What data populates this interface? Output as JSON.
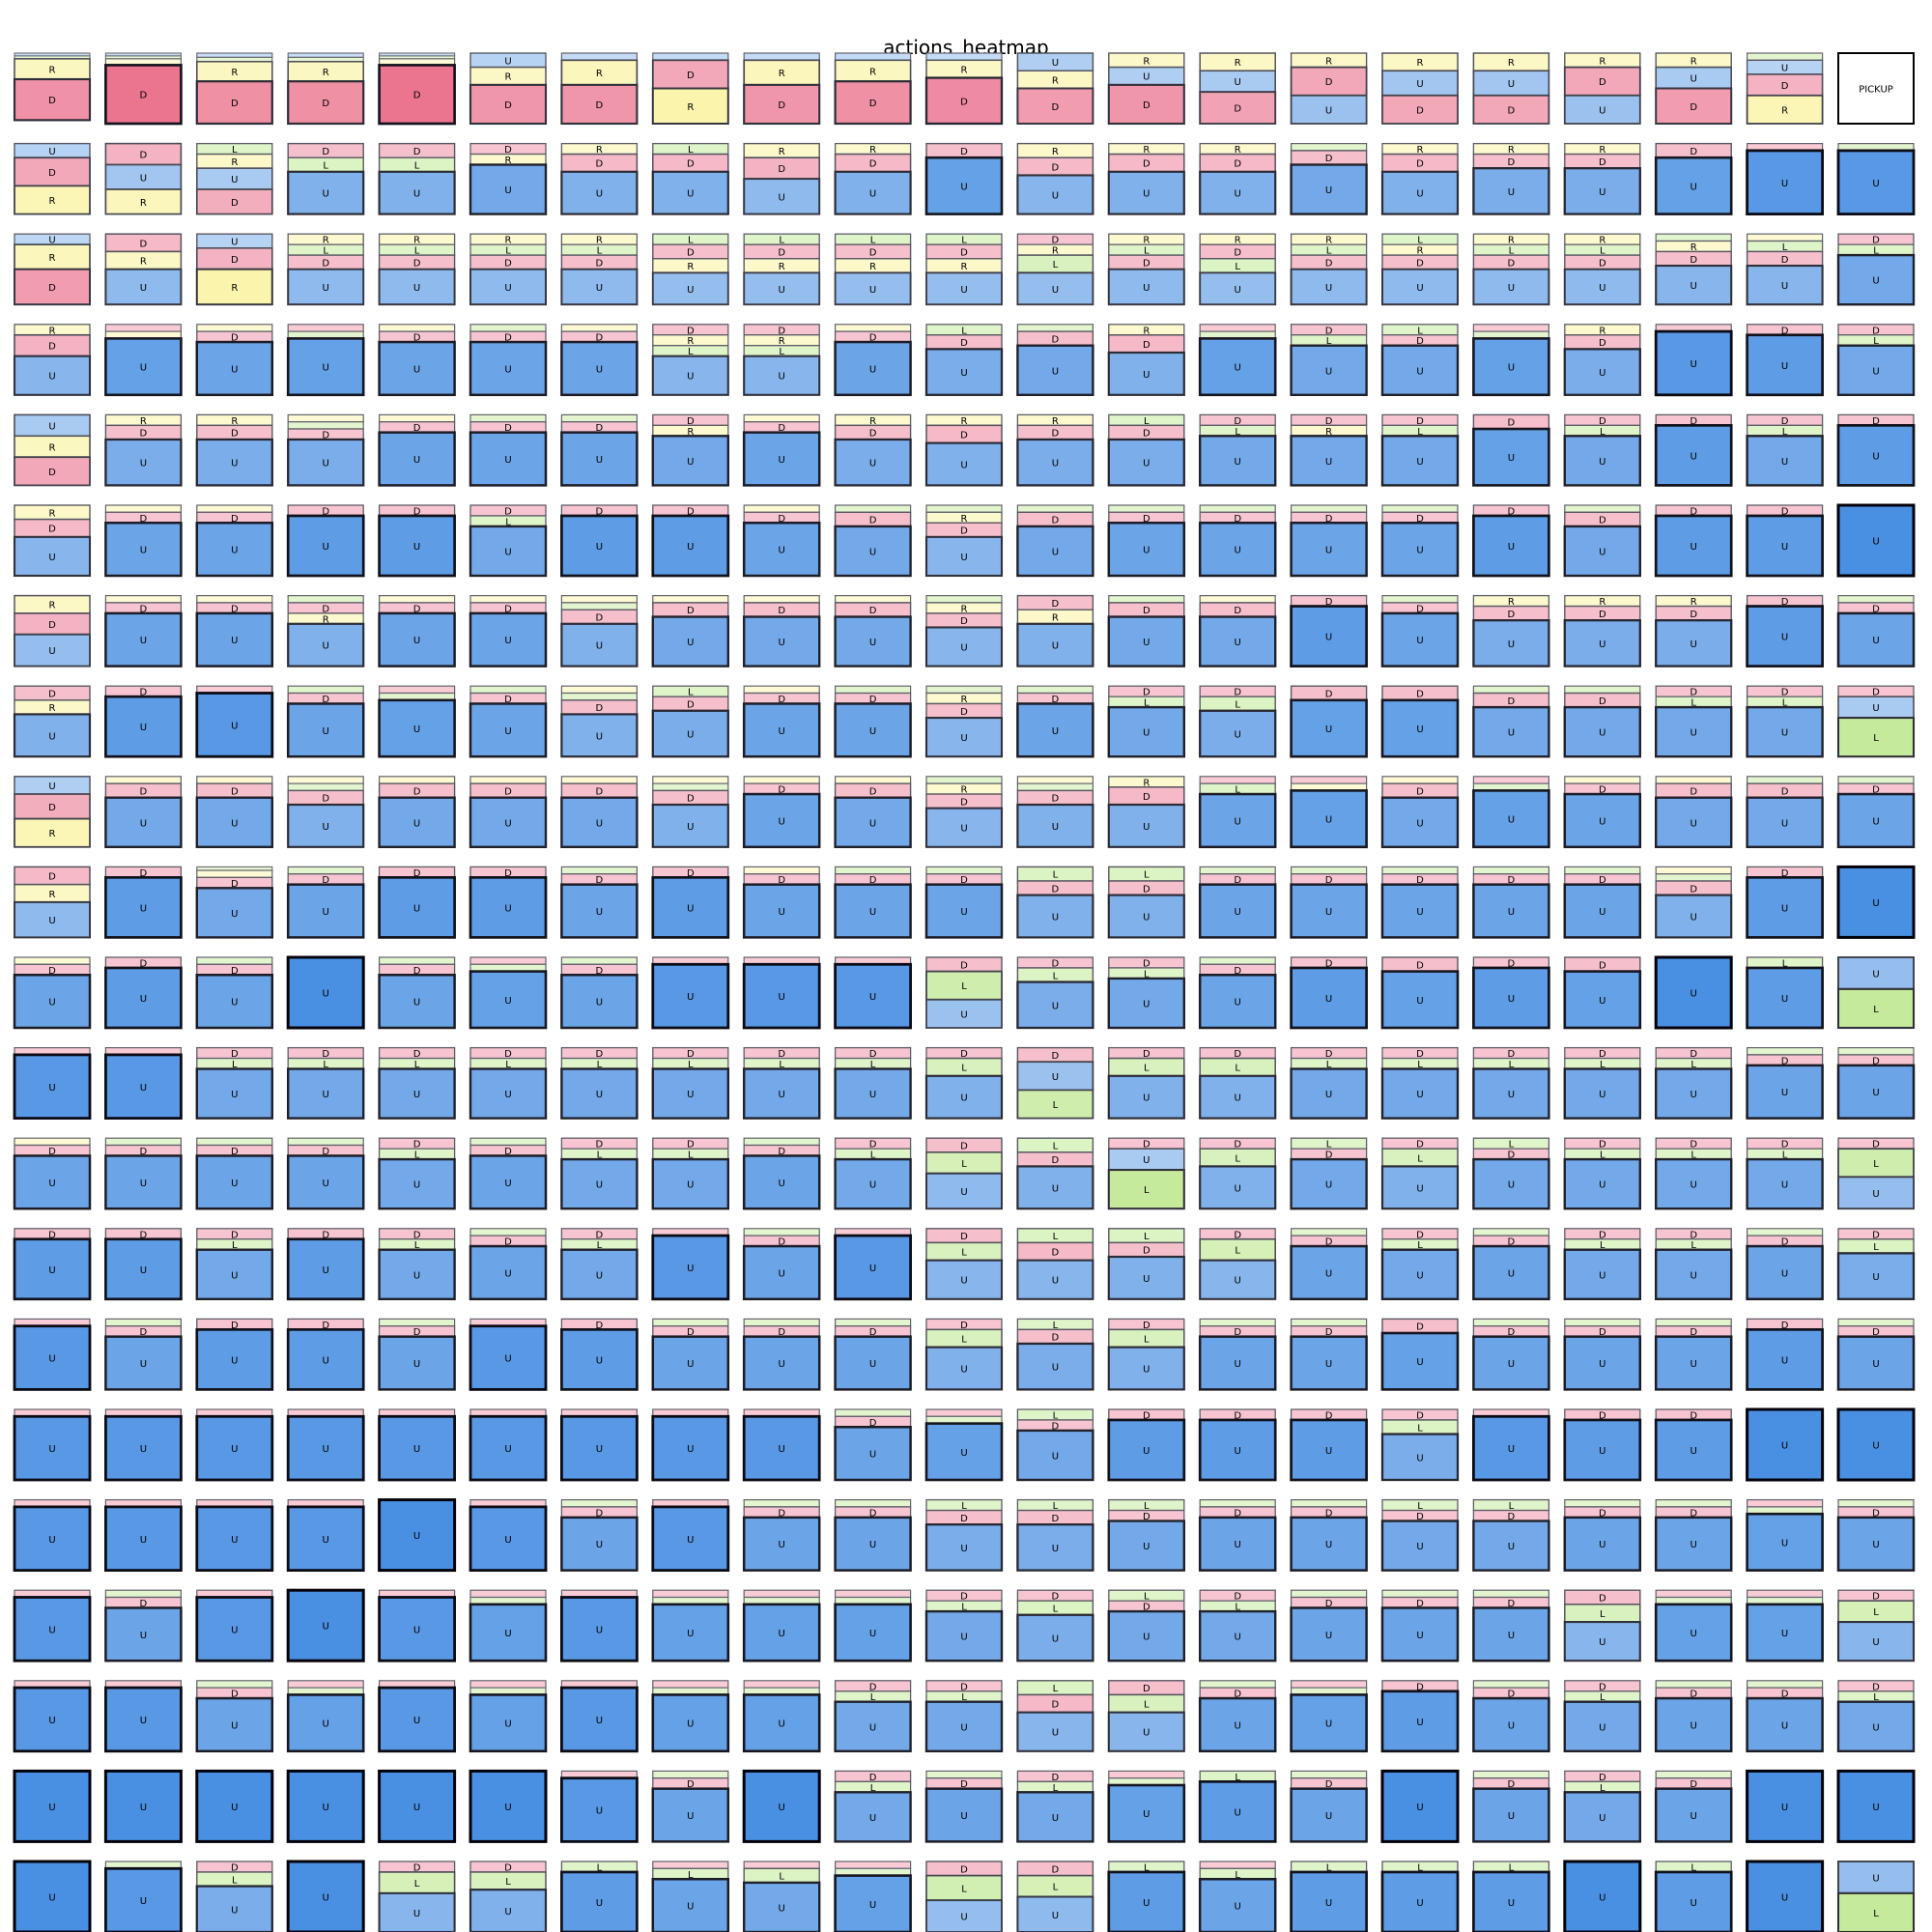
{
  "chart_data": {
    "type": "heatmap",
    "title": "actions_heatmap",
    "rows": 21,
    "cols": 21,
    "actions": [
      "U",
      "D",
      "L",
      "R"
    ],
    "action_colors": {
      "U": "#4a90e2",
      "D": "#e8607f",
      "L": "#a8e06a",
      "R": "#f7ee7a"
    },
    "special_cells": [
      {
        "row": 0,
        "col": 20,
        "label": "PICKUP"
      }
    ],
    "grid": [
      [
        "D:0.58,R:0.29,U:0.04,L:0.04",
        "D:0.83,R:0.09,U:0.04,L:0.04",
        "D:0.60,R:0.28,U:0.06,L:0.06",
        "D:0.60,R:0.28,U:0.06,L:0.06",
        "D:0.83,R:0.09,U:0.04,L:0.04",
        "D:0.55,R:0.25,U:0.20",
        "D:0.55,R:0.35,U:0.10",
        "R:0.50,D:0.40,U:0.10",
        "D:0.55,R:0.35,U:0.10",
        "D:0.60,R:0.30,U:0.10",
        "D:0.65,R:0.25,U:0.10",
        "D:0.50,U:0.25,R:0.25",
        "D:0.55,U:0.25,R:0.20",
        "D:0.45,U:0.30,R:0.25",
        "D:0.40,U:0.40,R:0.20",
        "D:0.40,U:0.35,R:0.25",
        "D:0.40,U:0.35,R:0.25",
        "D:0.40,U:0.40,R:0.20",
        "D:0.50,U:0.30,R:0.20",
        "R:0.40,D:0.30,U:0.20,L:0.10",
        "PICKUP"
      ],
      [
        "D:0.40,R:0.40,U:0.20",
        "U:0.35,R:0.35,D:0.30",
        "D:0.35,U:0.30,R:0.20,L:0.15",
        "U:0.60,D:0.20,L:0.20",
        "U:0.60,D:0.20,L:0.20",
        "U:0.70,D:0.15,R:0.15",
        "U:0.60,D:0.25,R:0.15",
        "U:0.60,D:0.25,L:0.15",
        "U:0.50,D:0.30,R:0.20",
        "U:0.60,D:0.25,R:0.15",
        "U:0.80,D:0.20",
        "U:0.55,D:0.25,R:0.20",
        "U:0.60,D:0.25,R:0.15",
        "U:0.60,D:0.25,R:0.15",
        "U:0.70,D:0.20,L:0.10",
        "U:0.60,D:0.25,R:0.15",
        "U:0.65,D:0.20,R:0.15",
        "U:0.65,D:0.20,R:0.15",
        "U:0.80,D:0.20",
        "U:0.90,D:0.10",
        "U:0.90,L:0.10"
      ],
      [
        "D:0.50,R:0.35,U:0.15",
        "U:0.50,D:0.25,R:0.25",
        "R:0.50,D:0.30,U:0.20",
        "U:0.50,D:0.20,R:0.15,L:0.15",
        "U:0.50,D:0.20,R:0.15,L:0.15",
        "U:0.50,D:0.20,R:0.15,L:0.15",
        "U:0.50,D:0.20,R:0.15,L:0.15",
        "U:0.45,D:0.20,R:0.20,L:0.15",
        "U:0.45,D:0.20,R:0.20,L:0.15",
        "U:0.45,D:0.20,R:0.20,L:0.15",
        "U:0.45,D:0.20,R:0.20,L:0.15",
        "U:0.45,L:0.25,D:0.15,R:0.15",
        "U:0.50,D:0.20,R:0.15,L:0.15",
        "U:0.45,D:0.20,L:0.20,R:0.15",
        "U:0.50,D:0.20,R:0.15,L:0.15",
        "U:0.50,D:0.20,L:0.15,R:0.15",
        "U:0.50,D:0.20,R:0.15,L:0.15",
        "U:0.50,D:0.20,R:0.15,L:0.15",
        "U:0.55,D:0.20,R:0.15,L:0.10",
        "U:0.55,D:0.20,L:0.15,R:0.10",
        "U:0.70,D:0.15,L:0.15"
      ],
      [
        "U:0.55,D:0.30,R:0.15",
        "U:0.80,D:0.10,R:0.10",
        "U:0.75,D:0.15,R:0.10",
        "U:0.80,D:0.10,L:0.10",
        "U:0.75,D:0.15,R:0.10",
        "U:0.75,D:0.15,L:0.10",
        "U:0.75,D:0.15,R:0.10",
        "U:0.55,D:0.15,R:0.15,L:0.15",
        "U:0.55,D:0.15,R:0.15,L:0.15",
        "U:0.75,D:0.15,R:0.10",
        "U:0.65,D:0.20,L:0.15",
        "U:0.70,D:0.20,L:0.10",
        "U:0.60,D:0.25,R:0.15",
        "U:0.80,D:0.10,L:0.10",
        "U:0.70,D:0.15,L:0.15",
        "U:0.70,L:0.15,D:0.15",
        "U:0.80,D:0.10,L:0.10",
        "U:0.65,D:0.20,R:0.15",
        "U:0.90,D:0.10",
        "U:0.85,D:0.15",
        "U:0.70,D:0.15,L:0.15"
      ],
      [
        "D:0.40,U:0.30,R:0.30",
        "U:0.65,D:0.20,R:0.15",
        "U:0.65,D:0.20,R:0.15",
        "U:0.65,D:0.15,R:0.10,L:0.10",
        "U:0.75,D:0.15,R:0.10",
        "U:0.75,D:0.15,L:0.10",
        "U:0.75,D:0.15,L:0.10",
        "U:0.70,D:0.15,R:0.15",
        "U:0.75,D:0.15,R:0.10",
        "U:0.65,D:0.20,R:0.15",
        "U:0.60,D:0.25,R:0.15",
        "U:0.65,D:0.20,R:0.15",
        "U:0.65,D:0.20,L:0.15",
        "U:0.70,D:0.15,L:0.15",
        "U:0.70,D:0.15,R:0.15",
        "U:0.70,D:0.15,L:0.15",
        "U:0.80,D:0.20",
        "U:0.70,D:0.15,L:0.15",
        "U:0.85,D:0.15",
        "U:0.70,D:0.15,L:0.15",
        "U:0.85,D:0.15"
      ],
      [
        "U:0.55,D:0.25,R:0.20",
        "U:0.75,D:0.15,R:0.10",
        "U:0.75,D:0.15,R:0.10",
        "U:0.85,D:0.15",
        "U:0.85,D:0.15",
        "U:0.70,D:0.15,L:0.15",
        "U:0.85,D:0.15",
        "U:0.85,D:0.15",
        "U:0.75,D:0.15,R:0.10",
        "U:0.70,D:0.20,L:0.10",
        "U:0.55,D:0.20,R:0.15,L:0.10",
        "U:0.70,D:0.20,L:0.10",
        "U:0.75,D:0.15,L:0.10",
        "U:0.75,D:0.15,L:0.10",
        "U:0.75,D:0.15,L:0.10",
        "U:0.75,D:0.15,L:0.10",
        "U:0.85,D:0.15",
        "U:0.70,D:0.20,L:0.10",
        "U:0.85,D:0.15",
        "U:0.85,D:0.15",
        "U:1.00"
      ],
      [
        "U:0.45,D:0.30,R:0.25",
        "U:0.75,D:0.15,R:0.10",
        "U:0.75,D:0.15,R:0.10",
        "U:0.60,D:0.15,R:0.15,L:0.10",
        "U:0.75,D:0.15,R:0.10",
        "U:0.75,D:0.15,R:0.10",
        "U:0.60,D:0.20,R:0.10,L:0.10",
        "U:0.70,D:0.20,R:0.10",
        "U:0.70,D:0.20,R:0.10",
        "U:0.70,D:0.20,R:0.10",
        "U:0.55,D:0.20,R:0.15,L:0.10",
        "U:0.60,D:0.20,R:0.20",
        "U:0.70,D:0.20,L:0.10",
        "U:0.70,D:0.20,R:0.10",
        "U:0.85,D:0.15",
        "U:0.75,D:0.15,L:0.10",
        "U:0.65,D:0.20,R:0.15",
        "U:0.65,D:0.20,R:0.15",
        "U:0.65,D:0.20,R:0.15",
        "U:0.85,D:0.15",
        "U:0.75,D:0.15,L:0.10"
      ],
      [
        "U:0.60,D:0.20,R:0.20",
        "U:0.85,D:0.15",
        "U:0.90,D:0.10",
        "U:0.75,D:0.15,L:0.10",
        "U:0.80,D:0.10,L:0.10",
        "U:0.75,D:0.15,L:0.10",
        "U:0.60,D:0.20,R:0.10,L:0.10",
        "U:0.65,D:0.20,L:0.15",
        "U:0.75,D:0.15,R:0.10",
        "U:0.75,D:0.15,L:0.10",
        "U:0.55,D:0.20,R:0.15,L:0.10",
        "U:0.75,D:0.15,L:0.10",
        "U:0.70,D:0.15,L:0.15",
        "U:0.65,L:0.20,D:0.15",
        "U:0.80,D:0.20",
        "U:0.80,D:0.20",
        "U:0.70,D:0.20,L:0.10",
        "U:0.70,D:0.20,L:0.10",
        "U:0.70,D:0.15,L:0.15",
        "U:0.70,D:0.15,L:0.15",
        "L:0.55,U:0.30,D:0.15"
      ],
      [
        "R:0.40,D:0.35,U:0.25",
        "U:0.70,D:0.20,R:0.10",
        "U:0.70,D:0.20,R:0.10",
        "U:0.60,D:0.20,R:0.10,L:0.10",
        "U:0.70,D:0.20,R:0.10",
        "U:0.70,D:0.20,R:0.10",
        "U:0.70,D:0.20,R:0.10",
        "U:0.60,D:0.20,R:0.10,L:0.10",
        "U:0.75,D:0.15,R:0.10",
        "U:0.70,D:0.20,R:0.10",
        "U:0.55,D:0.20,R:0.15,L:0.10",
        "U:0.60,D:0.20,R:0.10,L:0.10",
        "U:0.60,D:0.25,R:0.15",
        "U:0.75,D:0.10,L:0.15",
        "U:0.80,D:0.10,R:0.10",
        "U:0.70,D:0.20,R:0.10",
        "U:0.80,D:0.10,L:0.10",
        "U:0.75,D:0.15,R:0.10",
        "U:0.70,D:0.20,R:0.10",
        "U:0.70,D:0.20,L:0.10",
        "U:0.75,D:0.15,L:0.10"
      ],
      [
        "U:0.50,D:0.25,R:0.25",
        "U:0.85,D:0.15",
        "U:0.70,D:0.15,R:0.10,L:0.05",
        "U:0.75,D:0.15,L:0.10",
        "U:0.85,D:0.15",
        "U:0.85,D:0.15",
        "U:0.75,D:0.15,L:0.10",
        "U:0.85,D:0.15",
        "U:0.75,D:0.15,R:0.10",
        "U:0.75,D:0.15,L:0.10",
        "U:0.75,D:0.15,L:0.10",
        "U:0.60,L:0.20,D:0.20",
        "U:0.60,L:0.20,D:0.20",
        "U:0.75,D:0.15,L:0.10",
        "U:0.75,D:0.15,L:0.10",
        "U:0.75,D:0.15,L:0.10",
        "U:0.75,D:0.15,L:0.10",
        "U:0.75,D:0.15,L:0.10",
        "U:0.60,D:0.20,R:0.10,L:0.10",
        "U:0.85,D:0.15",
        "U:1.00"
      ],
      [
        "U:0.75,D:0.15,R:0.10",
        "U:0.85,D:0.15",
        "U:0.75,D:0.15,L:0.10",
        "U:1.00",
        "U:0.75,D:0.15,L:0.10",
        "U:0.80,D:0.10,L:0.10",
        "U:0.75,D:0.15,L:0.10",
        "U:0.90,D:0.10",
        "U:0.90,D:0.10",
        "U:0.90,D:0.10",
        "L:0.40,U:0.40,D:0.20",
        "U:0.65,L:0.20,D:0.15",
        "U:0.70,D:0.15,L:0.15",
        "U:0.75,D:0.15,L:0.10",
        "U:0.85,D:0.15",
        "U:0.80,D:0.20",
        "U:0.85,D:0.15",
        "U:0.80,D:0.20",
        "U:1.00",
        "U:0.85,L:0.15",
        "L:0.55,U:0.45"
      ],
      [
        "U:0.90,D:0.10",
        "U:0.90,D:0.10",
        "U:0.70,D:0.15,L:0.15",
        "U:0.70,D:0.15,L:0.15",
        "U:0.70,D:0.15,L:0.15",
        "U:0.70,D:0.15,L:0.15",
        "U:0.70,D:0.15,L:0.15",
        "U:0.70,D:0.15,L:0.15",
        "U:0.70,D:0.15,L:0.15",
        "U:0.70,D:0.15,L:0.15",
        "U:0.60,L:0.25,D:0.15",
        "U:0.40,L:0.40,D:0.20",
        "U:0.60,L:0.25,D:0.15",
        "U:0.60,L:0.25,D:0.15",
        "U:0.70,D:0.15,L:0.15",
        "U:0.70,D:0.15,L:0.15",
        "U:0.70,D:0.15,L:0.15",
        "U:0.70,D:0.15,L:0.15",
        "U:0.70,D:0.15,L:0.15",
        "U:0.75,D:0.15,L:0.10",
        "U:0.75,D:0.15,L:0.10"
      ],
      [
        "U:0.75,D:0.15,R:0.10",
        "U:0.75,D:0.15,L:0.10",
        "U:0.75,D:0.15,L:0.10",
        "U:0.75,D:0.15,L:0.10",
        "U:0.70,D:0.15,L:0.15",
        "U:0.75,D:0.15,L:0.10",
        "U:0.70,D:0.15,L:0.15",
        "U:0.70,D:0.15,L:0.15",
        "U:0.75,D:0.15,L:0.10",
        "U:0.70,D:0.15,L:0.15",
        "U:0.50,L:0.30,D:0.20",
        "U:0.60,L:0.20,D:0.20",
        "L:0.55,U:0.30,D:0.15",
        "U:0.60,L:0.25,D:0.15",
        "U:0.70,L:0.15,D:0.15",
        "U:0.60,L:0.25,D:0.15",
        "U:0.70,L:0.15,D:0.15",
        "U:0.70,D:0.15,L:0.15",
        "U:0.70,D:0.15,L:0.15",
        "U:0.70,D:0.15,L:0.15",
        "U:0.45,L:0.40,D:0.15"
      ],
      [
        "U:0.85,D:0.15",
        "U:0.85,D:0.15",
        "U:0.70,D:0.15,L:0.15",
        "U:0.85,D:0.15",
        "U:0.70,D:0.15,L:0.15",
        "U:0.75,D:0.15,L:0.10",
        "U:0.70,D:0.15,L:0.15",
        "U:0.90,D:0.10",
        "U:0.75,D:0.15,L:0.10",
        "U:0.90,D:0.10",
        "U:0.55,L:0.25,D:0.20",
        "U:0.55,D:0.25,L:0.20",
        "U:0.60,L:0.20,D:0.20",
        "U:0.55,L:0.30,D:0.15",
        "U:0.75,D:0.15,L:0.10",
        "U:0.70,D:0.15,L:0.15",
        "U:0.75,D:0.15,L:0.10",
        "U:0.70,D:0.15,L:0.15",
        "U:0.70,D:0.15,L:0.15",
        "U:0.75,D:0.15,L:0.10",
        "U:0.65,L:0.20,D:0.15"
      ],
      [
        "U:0.90,D:0.10",
        "U:0.75,D:0.15,L:0.10",
        "U:0.85,D:0.15",
        "U:0.85,D:0.15",
        "U:0.75,D:0.15,L:0.10",
        "U:0.90,D:0.10",
        "U:0.85,D:0.15",
        "U:0.75,D:0.15,L:0.10",
        "U:0.75,D:0.15,L:0.10",
        "U:0.75,D:0.15,L:0.10",
        "U:0.60,L:0.25,D:0.15",
        "U:0.65,D:0.20,L:0.15",
        "U:0.60,L:0.25,D:0.15",
        "U:0.75,D:0.15,L:0.10",
        "U:0.75,D:0.15,L:0.10",
        "U:0.80,D:0.20",
        "U:0.75,D:0.15,L:0.10",
        "U:0.75,D:0.15,L:0.10",
        "U:0.75,D:0.15,L:0.10",
        "U:0.85,D:0.15",
        "U:0.75,D:0.15,L:0.10"
      ],
      [
        "U:0.90,D:0.10",
        "U:0.90,D:0.10",
        "U:0.90,D:0.10",
        "U:0.90,D:0.10",
        "U:0.90,D:0.10",
        "U:0.90,D:0.10",
        "U:0.90,D:0.10",
        "U:0.90,D:0.10",
        "U:0.90,D:0.10",
        "U:0.75,D:0.15,L:0.10",
        "U:0.80,D:0.10,L:0.10",
        "U:0.70,L:0.15,D:0.15",
        "U:0.85,D:0.15",
        "U:0.85,D:0.15",
        "U:0.85,D:0.15",
        "U:0.65,L:0.20,D:0.15",
        "U:0.90,D:0.10",
        "U:0.85,D:0.15",
        "U:0.85,D:0.15",
        "U:1.00",
        "U:1.00"
      ],
      [
        "U:0.90,D:0.10",
        "U:0.90,D:0.10",
        "U:0.90,D:0.10",
        "U:0.90,D:0.10",
        "U:1.00",
        "U:0.90,D:0.10",
        "U:0.75,D:0.15,L:0.10",
        "U:0.90,D:0.10",
        "U:0.75,D:0.15,L:0.10",
        "U:0.75,D:0.15,L:0.10",
        "U:0.65,D:0.20,L:0.15",
        "U:0.65,D:0.20,L:0.15",
        "U:0.70,L:0.15,D:0.15",
        "U:0.75,D:0.15,L:0.10",
        "U:0.75,D:0.15,L:0.10",
        "U:0.70,L:0.15,D:0.15",
        "U:0.70,L:0.15,D:0.15",
        "U:0.75,D:0.15,L:0.10",
        "U:0.75,D:0.15,L:0.10",
        "U:0.80,D:0.10,L:0.10",
        "U:0.75,D:0.15,L:0.10"
      ],
      [
        "U:0.90,D:0.10",
        "U:0.75,D:0.15,L:0.10",
        "U:0.90,D:0.10",
        "U:1.00",
        "U:0.90,D:0.10",
        "U:0.80,D:0.10,L:0.10",
        "U:0.90,D:0.10",
        "U:0.80,D:0.10,L:0.10",
        "U:0.80,D:0.10,L:0.10",
        "U:0.80,D:0.10,L:0.10",
        "U:0.70,D:0.15,L:0.15",
        "U:0.65,L:0.20,D:0.15",
        "U:0.70,L:0.15,D:0.15",
        "U:0.70,D:0.15,L:0.15",
        "U:0.75,D:0.15,L:0.10",
        "U:0.75,D:0.15,L:0.10",
        "U:0.75,D:0.15,L:0.10",
        "U:0.55,L:0.25,D:0.20",
        "U:0.80,D:0.10,L:0.10",
        "U:0.80,D:0.10,L:0.10",
        "U:0.55,L:0.30,D:0.15"
      ],
      [
        "U:0.90,D:0.10",
        "U:0.90,D:0.10",
        "U:0.75,D:0.15,L:0.10",
        "U:0.80,D:0.10,L:0.10",
        "U:0.90,D:0.10",
        "U:0.80,D:0.10,L:0.10",
        "U:0.90,D:0.10",
        "U:0.80,D:0.10,L:0.10",
        "U:0.80,D:0.10,L:0.10",
        "U:0.70,D:0.15,L:0.15",
        "U:0.70,D:0.15,L:0.15",
        "U:0.55,D:0.25,L:0.20",
        "U:0.55,L:0.25,D:0.20",
        "U:0.75,D:0.15,L:0.10",
        "U:0.80,D:0.10,L:0.10",
        "U:0.85,D:0.15",
        "U:0.75,D:0.15,L:0.10",
        "U:0.70,D:0.15,L:0.15",
        "U:0.75,D:0.15,L:0.10",
        "U:0.75,D:0.15,L:0.10",
        "U:0.70,D:0.15,L:0.15"
      ],
      [
        "U:1.00",
        "U:1.00",
        "U:1.00",
        "U:1.00",
        "U:1.00",
        "U:1.00",
        "U:0.90,D:0.10",
        "U:0.75,D:0.15,L:0.10",
        "U:1.00",
        "U:0.70,D:0.15,L:0.15",
        "U:0.75,D:0.15,L:0.10",
        "U:0.70,D:0.15,L:0.15",
        "U:0.80,D:0.10,L:0.10",
        "U:0.85,L:0.15",
        "U:0.75,D:0.15,L:0.10",
        "U:1.00",
        "U:0.75,D:0.15,L:0.10",
        "U:0.70,D:0.15,L:0.15",
        "U:0.75,D:0.15,L:0.10",
        "U:1.00",
        "U:1.00"
      ],
      [
        "U:1.00",
        "U:0.90,L:0.10",
        "U:0.65,L:0.20,D:0.15",
        "U:1.00",
        "U:0.55,L:0.30,D:0.15",
        "U:0.60,L:0.25,D:0.15",
        "U:0.85,L:0.15",
        "U:0.75,L:0.15,D:0.10",
        "U:0.70,L:0.20,D:0.10",
        "U:0.80,D:0.10,L:0.10",
        "U:0.45,L:0.35,D:0.20",
        "U:0.50,L:0.30,D:0.20",
        "U:0.85,L:0.15",
        "U:0.75,L:0.15,D:0.10",
        "U:0.85,L:0.15",
        "U:0.85,L:0.15",
        "U:0.85,L:0.15",
        "U:1.00",
        "U:0.85,L:0.15",
        "U:1.00",
        "L:0.55,U:0.45"
      ]
    ]
  }
}
